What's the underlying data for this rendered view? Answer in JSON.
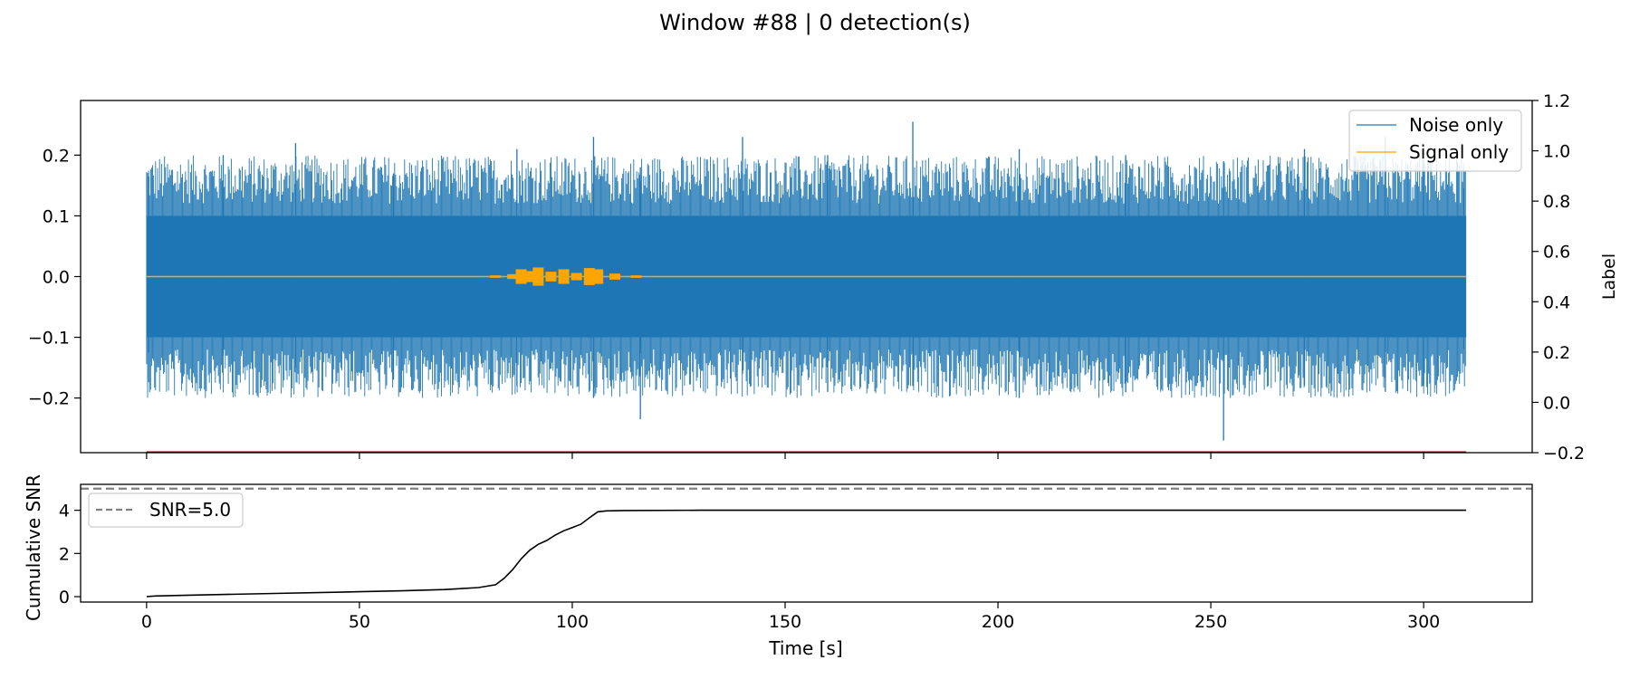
{
  "title": "Window #88 | 0 detection(s)",
  "colors": {
    "noise": "#1f77b4",
    "signal": "#ffa500",
    "label_line": "#8b0000",
    "threshold": "#808080",
    "snr": "#000000"
  },
  "chart_data": [
    {
      "type": "line",
      "panel": "top",
      "x_range": [
        -15.5,
        325.5
      ],
      "y_left": {
        "range": [
          -0.29,
          0.29
        ],
        "ticks": [
          -0.2,
          -0.1,
          0.0,
          0.1,
          0.2
        ],
        "tick_labels": [
          "−0.2",
          "−0.1",
          "0.0",
          "0.1",
          "0.2"
        ]
      },
      "y_right": {
        "label": "Label",
        "range": [
          -0.2,
          1.2
        ],
        "ticks": [
          -0.2,
          0.0,
          0.2,
          0.4,
          0.6,
          0.8,
          1.0,
          1.2
        ],
        "tick_labels": [
          "−0.2",
          "0.0",
          "0.2",
          "0.4",
          "0.6",
          "0.8",
          "1.0",
          "1.2"
        ]
      },
      "legend": {
        "placement": "upper right",
        "entries": [
          "Noise only",
          "Signal only"
        ]
      },
      "series": [
        {
          "name": "Noise only",
          "style": "dense envelope",
          "x": [
            0,
            310
          ],
          "core_amplitude": 0.1,
          "spikes": [
            {
              "x": 0.5,
              "ymin": -0.125,
              "ymax": 0.165
            },
            {
              "x": 18,
              "ymin": -0.13,
              "ymax": 0.2
            },
            {
              "x": 35,
              "ymin": -0.15,
              "ymax": 0.22
            },
            {
              "x": 58,
              "ymin": -0.17,
              "ymax": 0.17
            },
            {
              "x": 87,
              "ymin": -0.18,
              "ymax": 0.21
            },
            {
              "x": 105,
              "ymin": -0.2,
              "ymax": 0.23
            },
            {
              "x": 116,
              "ymin": -0.235,
              "ymax": 0.18
            },
            {
              "x": 140,
              "ymin": -0.16,
              "ymax": 0.23
            },
            {
              "x": 160,
              "ymin": -0.19,
              "ymax": 0.2
            },
            {
              "x": 180,
              "ymin": -0.18,
              "ymax": 0.255
            },
            {
              "x": 205,
              "ymin": -0.2,
              "ymax": 0.21
            },
            {
              "x": 230,
              "ymin": -0.19,
              "ymax": 0.2
            },
            {
              "x": 253,
              "ymin": -0.27,
              "ymax": 0.19
            },
            {
              "x": 272,
              "ymin": -0.18,
              "ymax": 0.21
            },
            {
              "x": 291,
              "ymin": -0.19,
              "ymax": 0.23
            },
            {
              "x": 300,
              "ymin": -0.18,
              "ymax": 0.22
            },
            {
              "x": 309.5,
              "ymin": -0.12,
              "ymax": 0.145
            }
          ]
        },
        {
          "name": "Signal only",
          "x": [
            0,
            310
          ],
          "value": 0.0,
          "burst": [
            [
              82,
              0.002
            ],
            [
              86,
              0.004
            ],
            [
              88,
              0.012
            ],
            [
              90,
              0.009
            ],
            [
              92,
              0.015
            ],
            [
              95,
              0.008
            ],
            [
              98,
              0.012
            ],
            [
              101,
              0.006
            ],
            [
              104,
              0.014
            ],
            [
              106,
              0.012
            ],
            [
              110,
              0.005
            ],
            [
              115,
              0.002
            ]
          ]
        },
        {
          "axis": "right",
          "x": [
            0,
            310
          ],
          "value": -0.2
        }
      ]
    },
    {
      "type": "line",
      "panel": "bottom",
      "xlabel": "Time [s]",
      "ylabel": "Cumulative SNR",
      "x_range": [
        -15.5,
        325.5
      ],
      "x_ticks": [
        0,
        50,
        100,
        150,
        200,
        250,
        300
      ],
      "y_range": [
        -0.25,
        5.2
      ],
      "y_ticks": [
        0,
        2,
        4
      ],
      "legend": {
        "placement": "upper left",
        "entries": [
          "SNR=5.0"
        ]
      },
      "threshold": {
        "name": "SNR=5.0",
        "value": 5.0
      },
      "series": [
        {
          "x": [
            0,
            2,
            10,
            30,
            50,
            60,
            70,
            78,
            82,
            84,
            86,
            88,
            90,
            92,
            94,
            96,
            98,
            100,
            102,
            104,
            106,
            108,
            112,
            130,
            200,
            310
          ],
          "y": [
            0.0,
            0.03,
            0.07,
            0.15,
            0.23,
            0.27,
            0.33,
            0.42,
            0.55,
            0.85,
            1.25,
            1.75,
            2.15,
            2.42,
            2.6,
            2.85,
            3.05,
            3.2,
            3.35,
            3.65,
            3.93,
            3.97,
            3.99,
            4.0,
            4.0,
            4.0
          ]
        }
      ]
    }
  ]
}
